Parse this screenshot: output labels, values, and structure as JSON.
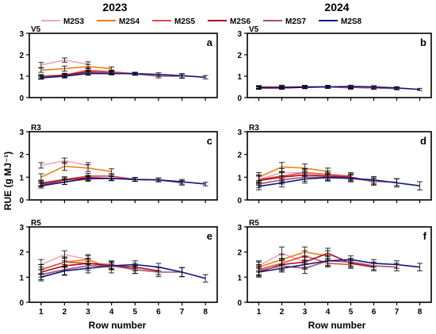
{
  "figure": {
    "year_left": "2023",
    "year_right": "2024",
    "ylabel": "RUE (g MJ⁻¹)",
    "xlabel": "Row number"
  },
  "legend": [
    {
      "name": "M2S3",
      "color": "#f4a6b8"
    },
    {
      "name": "M2S4",
      "color": "#f07f14"
    },
    {
      "name": "M2S5",
      "color": "#e04848"
    },
    {
      "name": "M2S6",
      "color": "#a50f1c"
    },
    {
      "name": "M2S7",
      "color": "#a0506e"
    },
    {
      "name": "M2S8",
      "color": "#0c1480"
    }
  ],
  "chart_data": [
    {
      "type": "line",
      "panel": "a",
      "stage": "V5",
      "year": "2023",
      "x": [
        1,
        2,
        3,
        4,
        5,
        6,
        7,
        8
      ],
      "ylim": [
        0,
        3
      ],
      "yticks": [
        0,
        1,
        2,
        3
      ],
      "error_bars": true,
      "series": [
        {
          "name": "M2S3",
          "color": "#f4a6b8",
          "values": [
            1.52,
            1.75,
            1.55,
            null,
            null,
            null,
            null,
            null
          ],
          "errors": [
            0.12,
            0.1,
            0.12,
            null,
            null,
            null,
            null,
            null
          ]
        },
        {
          "name": "M2S4",
          "color": "#f07f14",
          "values": [
            1.28,
            1.35,
            1.45,
            1.35,
            null,
            null,
            null,
            null
          ],
          "errors": [
            0.1,
            0.12,
            0.1,
            0.08,
            null,
            null,
            null,
            null
          ]
        },
        {
          "name": "M2S5",
          "color": "#e04848",
          "values": [
            1.0,
            1.05,
            1.28,
            1.2,
            1.12,
            null,
            null,
            null
          ],
          "errors": [
            0.08,
            0.08,
            0.1,
            0.08,
            0.06,
            null,
            null,
            null
          ]
        },
        {
          "name": "M2S6",
          "color": "#a50f1c",
          "values": [
            0.95,
            1.05,
            1.2,
            1.15,
            null,
            null,
            null,
            null
          ],
          "errors": [
            0.08,
            0.08,
            0.08,
            0.08,
            null,
            null,
            null,
            null
          ]
        },
        {
          "name": "M2S7",
          "color": "#a0506e",
          "values": [
            0.95,
            1.0,
            1.15,
            1.15,
            1.1,
            1.0,
            1.0,
            null
          ],
          "errors": [
            0.08,
            0.08,
            0.08,
            0.08,
            0.06,
            0.08,
            0.1,
            null
          ]
        },
        {
          "name": "M2S8",
          "color": "#0c1480",
          "values": [
            0.92,
            1.0,
            1.12,
            1.12,
            1.12,
            1.08,
            1.02,
            0.95
          ],
          "errors": [
            0.06,
            0.08,
            0.08,
            0.06,
            0.06,
            0.08,
            0.1,
            0.08
          ]
        }
      ]
    },
    {
      "type": "line",
      "panel": "b",
      "stage": "V5",
      "year": "2024",
      "x": [
        1,
        2,
        3,
        4,
        5,
        6,
        7,
        8
      ],
      "ylim": [
        0,
        3
      ],
      "yticks": [
        0,
        1,
        2,
        3
      ],
      "error_bars": true,
      "series": [
        {
          "name": "M2S3",
          "color": "#f4a6b8",
          "values": [
            0.45,
            0.45,
            0.5,
            null,
            null,
            null,
            null,
            null
          ],
          "errors": [
            0.06,
            0.06,
            0.06,
            null,
            null,
            null,
            null,
            null
          ]
        },
        {
          "name": "M2S4",
          "color": "#f07f14",
          "values": [
            0.5,
            0.5,
            0.5,
            0.5,
            null,
            null,
            null,
            null
          ],
          "errors": [
            0.06,
            0.08,
            0.06,
            0.06,
            null,
            null,
            null,
            null
          ]
        },
        {
          "name": "M2S5",
          "color": "#e04848",
          "values": [
            0.48,
            0.48,
            0.5,
            0.5,
            0.45,
            null,
            null,
            null
          ],
          "errors": [
            0.06,
            0.06,
            0.06,
            0.06,
            0.06,
            null,
            null,
            null
          ]
        },
        {
          "name": "M2S6",
          "color": "#a50f1c",
          "values": [
            0.48,
            0.48,
            0.5,
            0.5,
            0.48,
            0.45,
            null,
            null
          ],
          "errors": [
            0.06,
            0.06,
            0.06,
            0.06,
            0.06,
            0.06,
            null,
            null
          ]
        },
        {
          "name": "M2S7",
          "color": "#a0506e",
          "values": [
            0.45,
            0.45,
            0.48,
            0.5,
            0.48,
            0.45,
            0.42,
            null
          ],
          "errors": [
            0.06,
            0.06,
            0.06,
            0.06,
            0.06,
            0.06,
            0.06,
            null
          ]
        },
        {
          "name": "M2S8",
          "color": "#0c1480",
          "values": [
            0.45,
            0.45,
            0.48,
            0.5,
            0.52,
            0.5,
            0.45,
            0.38
          ],
          "errors": [
            0.06,
            0.06,
            0.06,
            0.06,
            0.06,
            0.06,
            0.06,
            0.05
          ]
        }
      ]
    },
    {
      "type": "line",
      "panel": "c",
      "stage": "R3",
      "year": "2023",
      "x": [
        1,
        2,
        3,
        4,
        5,
        6,
        7,
        8
      ],
      "ylim": [
        0,
        3
      ],
      "yticks": [
        0,
        1,
        2,
        3
      ],
      "error_bars": true,
      "series": [
        {
          "name": "M2S3",
          "color": "#f4a6b8",
          "values": [
            1.52,
            1.72,
            1.52,
            null,
            null,
            null,
            null,
            null
          ],
          "errors": [
            0.12,
            0.12,
            0.12,
            null,
            null,
            null,
            null,
            null
          ]
        },
        {
          "name": "M2S4",
          "color": "#f07f14",
          "values": [
            1.0,
            1.48,
            1.4,
            1.25,
            null,
            null,
            null,
            null
          ],
          "errors": [
            0.15,
            0.18,
            0.15,
            0.12,
            null,
            null,
            null,
            null
          ]
        },
        {
          "name": "M2S5",
          "color": "#e04848",
          "values": [
            0.75,
            0.9,
            1.05,
            1.05,
            0.9,
            null,
            null,
            null
          ],
          "errors": [
            0.12,
            0.12,
            0.12,
            0.1,
            0.08,
            null,
            null,
            null
          ]
        },
        {
          "name": "M2S6",
          "color": "#a50f1c",
          "values": [
            0.7,
            0.88,
            0.98,
            0.95,
            0.9,
            0.88,
            null,
            null
          ],
          "errors": [
            0.1,
            0.1,
            0.1,
            0.1,
            0.08,
            0.08,
            null,
            null
          ]
        },
        {
          "name": "M2S7",
          "color": "#a0506e",
          "values": [
            0.68,
            0.8,
            0.92,
            0.95,
            0.9,
            0.88,
            0.75,
            null
          ],
          "errors": [
            0.1,
            0.12,
            0.1,
            0.1,
            0.08,
            0.08,
            0.1,
            null
          ]
        },
        {
          "name": "M2S8",
          "color": "#0c1480",
          "values": [
            0.62,
            0.78,
            0.95,
            0.95,
            0.9,
            0.88,
            0.8,
            0.7
          ],
          "errors": [
            0.1,
            0.1,
            0.1,
            0.08,
            0.08,
            0.08,
            0.1,
            0.08
          ]
        }
      ]
    },
    {
      "type": "line",
      "panel": "d",
      "stage": "R3",
      "year": "2024",
      "x": [
        1,
        2,
        3,
        4,
        5,
        6,
        7,
        8
      ],
      "ylim": [
        0,
        3
      ],
      "yticks": [
        0,
        1,
        2,
        3
      ],
      "error_bars": true,
      "series": [
        {
          "name": "M2S3",
          "color": "#f4a6b8",
          "values": [
            0.9,
            1.2,
            1.2,
            null,
            null,
            null,
            null,
            null
          ],
          "errors": [
            0.15,
            0.18,
            0.15,
            null,
            null,
            null,
            null,
            null
          ]
        },
        {
          "name": "M2S4",
          "color": "#f07f14",
          "values": [
            1.0,
            1.45,
            1.4,
            1.25,
            null,
            null,
            null,
            null
          ],
          "errors": [
            0.2,
            0.2,
            0.18,
            0.15,
            null,
            null,
            null,
            null
          ]
        },
        {
          "name": "M2S5",
          "color": "#e04848",
          "values": [
            0.9,
            1.05,
            1.2,
            1.12,
            1.05,
            null,
            null,
            null
          ],
          "errors": [
            0.2,
            0.2,
            0.18,
            0.15,
            0.15,
            null,
            null,
            null
          ]
        },
        {
          "name": "M2S6",
          "color": "#a50f1c",
          "values": [
            0.85,
            1.0,
            1.1,
            1.05,
            1.0,
            0.8,
            null,
            null
          ],
          "errors": [
            0.2,
            0.2,
            0.18,
            0.15,
            0.15,
            0.15,
            null,
            null
          ]
        },
        {
          "name": "M2S7",
          "color": "#a0506e",
          "values": [
            0.7,
            0.88,
            1.0,
            1.0,
            0.95,
            0.82,
            0.78,
            null
          ],
          "errors": [
            0.15,
            0.18,
            0.18,
            0.15,
            0.15,
            0.15,
            0.15,
            null
          ]
        },
        {
          "name": "M2S8",
          "color": "#0c1480",
          "values": [
            0.6,
            0.75,
            0.92,
            0.98,
            0.95,
            0.88,
            0.75,
            0.62
          ],
          "errors": [
            0.15,
            0.18,
            0.18,
            0.15,
            0.15,
            0.15,
            0.18,
            0.18
          ]
        }
      ]
    },
    {
      "type": "line",
      "panel": "e",
      "stage": "R5",
      "year": "2023",
      "x": [
        1,
        2,
        3,
        4,
        5,
        6,
        7,
        8
      ],
      "ylim": [
        0,
        3
      ],
      "yticks": [
        0,
        1,
        2,
        3
      ],
      "error_bars": true,
      "series": [
        {
          "name": "M2S3",
          "color": "#f4a6b8",
          "values": [
            1.5,
            1.9,
            1.7,
            null,
            null,
            null,
            null,
            null
          ],
          "errors": [
            0.2,
            0.15,
            0.15,
            null,
            null,
            null,
            null,
            null
          ]
        },
        {
          "name": "M2S4",
          "color": "#f07f14",
          "values": [
            1.3,
            1.6,
            1.7,
            1.35,
            null,
            null,
            null,
            null
          ],
          "errors": [
            0.2,
            0.2,
            0.2,
            0.18,
            null,
            null,
            null,
            null
          ]
        },
        {
          "name": "M2S5",
          "color": "#e04848",
          "values": [
            1.3,
            1.6,
            1.55,
            1.5,
            1.3,
            null,
            null,
            null
          ],
          "errors": [
            0.2,
            0.2,
            0.2,
            0.15,
            0.15,
            null,
            null,
            null
          ]
        },
        {
          "name": "M2S6",
          "color": "#a50f1c",
          "values": [
            1.2,
            1.45,
            1.55,
            1.45,
            1.4,
            1.25,
            null,
            null
          ],
          "errors": [
            0.2,
            0.2,
            0.18,
            0.15,
            0.15,
            0.15,
            null,
            null
          ]
        },
        {
          "name": "M2S7",
          "color": "#a0506e",
          "values": [
            1.1,
            1.3,
            1.45,
            1.45,
            1.3,
            1.2,
            1.2,
            null
          ],
          "errors": [
            0.2,
            0.2,
            0.18,
            0.15,
            0.15,
            0.18,
            0.18,
            null
          ]
        },
        {
          "name": "M2S8",
          "color": "#0c1480",
          "values": [
            1.0,
            1.25,
            1.35,
            1.45,
            1.5,
            1.4,
            1.2,
            0.95
          ],
          "errors": [
            0.15,
            0.18,
            0.18,
            0.15,
            0.15,
            0.15,
            0.18,
            0.15
          ]
        }
      ]
    },
    {
      "type": "line",
      "panel": "f",
      "stage": "R5",
      "year": "2024",
      "x": [
        1,
        2,
        3,
        4,
        5,
        6,
        7,
        8
      ],
      "ylim": [
        0,
        3
      ],
      "yticks": [
        0,
        1,
        2,
        3
      ],
      "error_bars": true,
      "series": [
        {
          "name": "M2S3",
          "color": "#f4a6b8",
          "values": [
            1.45,
            1.95,
            1.6,
            null,
            null,
            null,
            null,
            null
          ],
          "errors": [
            0.2,
            0.25,
            0.25,
            null,
            null,
            null,
            null,
            null
          ]
        },
        {
          "name": "M2S4",
          "color": "#f07f14",
          "values": [
            1.4,
            1.7,
            2.0,
            1.85,
            null,
            null,
            null,
            null
          ],
          "errors": [
            0.2,
            0.2,
            0.2,
            0.2,
            null,
            null,
            null,
            null
          ]
        },
        {
          "name": "M2S5",
          "color": "#e04848",
          "values": [
            1.3,
            1.55,
            1.85,
            1.55,
            1.5,
            null,
            null,
            null
          ],
          "errors": [
            0.2,
            0.2,
            0.2,
            0.15,
            0.15,
            null,
            null,
            null
          ]
        },
        {
          "name": "M2S6",
          "color": "#a50f1c",
          "values": [
            1.2,
            1.5,
            1.6,
            1.95,
            1.55,
            1.4,
            null,
            null
          ],
          "errors": [
            0.2,
            0.2,
            0.2,
            0.2,
            0.15,
            0.15,
            null,
            null
          ]
        },
        {
          "name": "M2S7",
          "color": "#a0506e",
          "values": [
            1.25,
            1.45,
            1.35,
            1.65,
            1.6,
            1.45,
            1.4,
            null
          ],
          "errors": [
            0.2,
            0.2,
            0.2,
            0.2,
            0.15,
            0.15,
            0.15,
            null
          ]
        },
        {
          "name": "M2S8",
          "color": "#0c1480",
          "values": [
            1.2,
            1.35,
            1.5,
            1.65,
            1.7,
            1.55,
            1.5,
            1.4
          ],
          "errors": [
            0.15,
            0.15,
            0.18,
            0.18,
            0.15,
            0.15,
            0.15,
            0.15
          ]
        }
      ]
    }
  ]
}
